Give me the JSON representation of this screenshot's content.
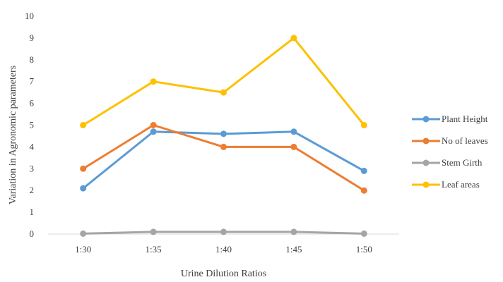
{
  "chart_data": {
    "type": "line",
    "title": "",
    "xlabel": "Urine Dilution Ratios",
    "ylabel": "Variation in Agronomic parameters",
    "categories": [
      "1:30",
      "1:35",
      "1:40",
      "1:45",
      "1:50"
    ],
    "ylim": [
      0,
      10
    ],
    "yticks": [
      0,
      1,
      2,
      3,
      4,
      5,
      6,
      7,
      8,
      9,
      10
    ],
    "grid": "horizontal baseline only",
    "legend_position": "right",
    "series": [
      {
        "name": "Plant Height",
        "color": "#5B9BD5",
        "values": [
          2.1,
          4.7,
          4.6,
          4.7,
          2.9
        ]
      },
      {
        "name": "No of leaves",
        "color": "#ED7D31",
        "values": [
          3,
          5,
          4,
          4,
          2
        ]
      },
      {
        "name": "Stem Girth",
        "color": "#A5A5A5",
        "values": [
          0.02,
          0.1,
          0.1,
          0.1,
          0.02
        ]
      },
      {
        "name": "Leaf areas",
        "color": "#FFC000",
        "values": [
          5,
          7,
          6.5,
          9,
          5
        ]
      }
    ]
  }
}
